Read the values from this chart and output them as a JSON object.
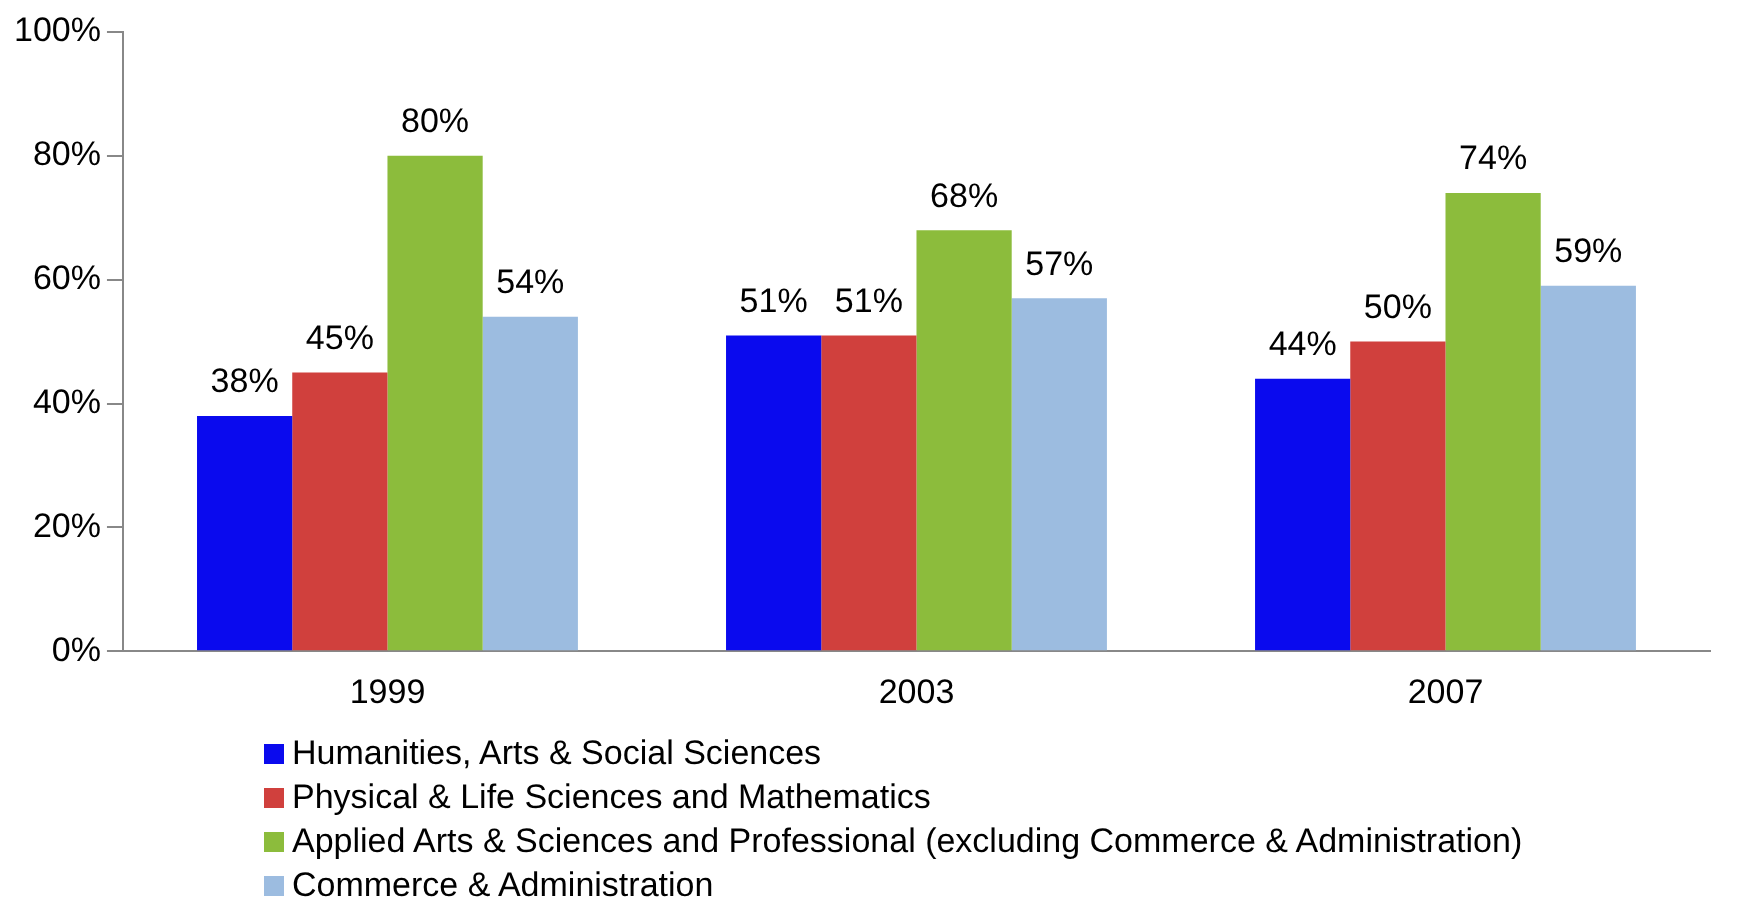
{
  "chart_data": {
    "type": "bar",
    "categories": [
      "1999",
      "2003",
      "2007"
    ],
    "series": [
      {
        "name": "Humanities, Arts & Social Sciences",
        "color": "#0a0aee",
        "values": [
          38,
          51,
          44
        ],
        "value_labels": [
          "38%",
          "51%",
          "44%"
        ]
      },
      {
        "name": "Physical & Life Sciences and Mathematics",
        "color": "#d0403d",
        "values": [
          45,
          51,
          50
        ],
        "value_labels": [
          "45%",
          "51%",
          "50%"
        ]
      },
      {
        "name": "Applied Arts & Sciences and Professional (excluding Commerce & Administration)",
        "color": "#8cbc3c",
        "values": [
          80,
          68,
          74
        ],
        "value_labels": [
          "80%",
          "68%",
          "74%"
        ]
      },
      {
        "name": "Commerce & Administration",
        "color": "#9cbce0",
        "values": [
          54,
          57,
          59
        ],
        "value_labels": [
          "54%",
          "57%",
          "59%"
        ]
      }
    ],
    "ylim": [
      0,
      100
    ],
    "yticks": [
      {
        "value": 0,
        "label": "0%"
      },
      {
        "value": 20,
        "label": "20%"
      },
      {
        "value": 40,
        "label": "40%"
      },
      {
        "value": 60,
        "label": "60%"
      },
      {
        "value": 80,
        "label": "80%"
      },
      {
        "value": 100,
        "label": "100%"
      }
    ],
    "grid": false,
    "legend": "bottom"
  }
}
